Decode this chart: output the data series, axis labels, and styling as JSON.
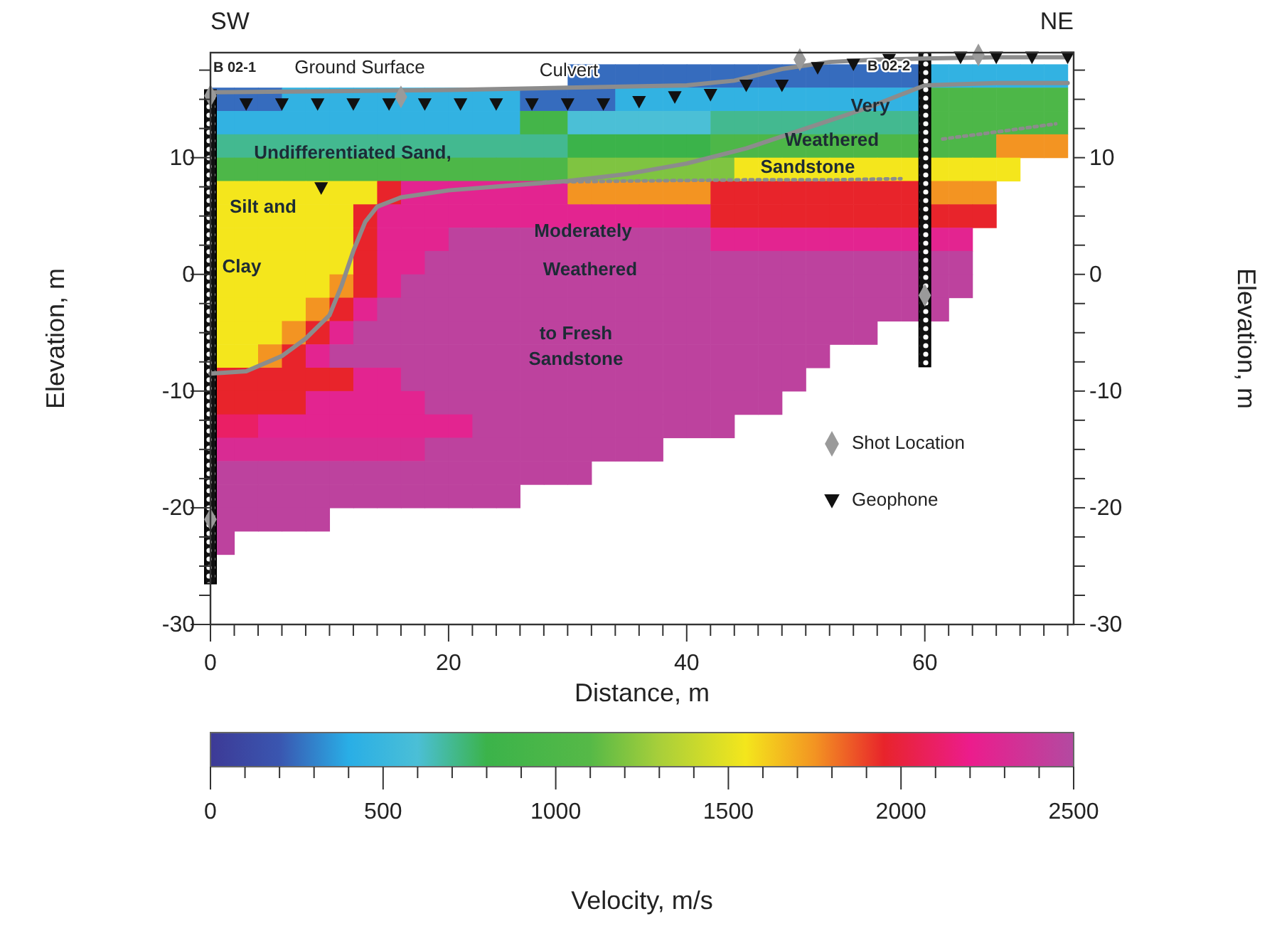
{
  "chart_data": {
    "type": "heatmap",
    "xlabel": "Distance, m",
    "ylabel": "Elevation, m",
    "y2label": "Elevation, m",
    "clabel": "Velocity, m/s",
    "x": [
      1,
      3,
      5,
      7,
      9,
      11,
      13,
      15,
      17,
      19,
      21,
      23,
      25,
      27,
      29,
      31,
      33,
      35,
      37,
      39,
      41,
      43,
      45,
      47,
      49,
      51,
      53,
      55,
      57,
      59,
      61,
      63,
      65,
      67,
      69,
      71
    ],
    "y": [
      17,
      15,
      13,
      11,
      9,
      7,
      5,
      3,
      1,
      -1,
      -3,
      -5,
      -7,
      -9,
      -11,
      -13,
      -15,
      -17,
      -19,
      -21,
      -23
    ],
    "cells": [
      [
        null,
        null,
        null,
        null,
        null,
        null,
        null,
        null,
        null,
        null,
        null,
        null,
        null,
        null,
        null,
        250,
        250,
        250,
        250,
        250,
        250,
        250,
        250,
        250,
        250,
        250,
        250,
        250,
        250,
        250,
        450,
        450,
        450,
        450,
        450,
        450
      ],
      [
        250,
        250,
        250,
        450,
        450,
        450,
        450,
        450,
        450,
        450,
        450,
        450,
        450,
        250,
        250,
        250,
        250,
        450,
        450,
        450,
        450,
        450,
        450,
        450,
        450,
        450,
        450,
        450,
        450,
        450,
        1000,
        1000,
        1000,
        1000,
        1000,
        1000
      ],
      [
        450,
        450,
        450,
        450,
        450,
        450,
        450,
        450,
        450,
        450,
        450,
        450,
        450,
        900,
        900,
        600,
        600,
        600,
        600,
        600,
        600,
        700,
        700,
        700,
        700,
        700,
        700,
        700,
        700,
        700,
        1000,
        1000,
        1000,
        1000,
        1000,
        1000
      ],
      [
        700,
        700,
        700,
        700,
        700,
        700,
        700,
        700,
        700,
        700,
        700,
        700,
        700,
        700,
        700,
        800,
        800,
        800,
        800,
        800,
        800,
        1000,
        1000,
        1000,
        1000,
        1000,
        1000,
        1000,
        1000,
        1000,
        1000,
        1000,
        1000,
        1750,
        1750,
        1750
      ],
      [
        1000,
        1000,
        1000,
        1000,
        1000,
        1000,
        1000,
        1000,
        1000,
        1000,
        1000,
        1000,
        1000,
        1000,
        1000,
        1200,
        1200,
        1200,
        1200,
        1200,
        1200,
        1200,
        1550,
        1550,
        1550,
        1550,
        1550,
        1550,
        1550,
        1550,
        1550,
        1550,
        1550,
        1550,
        null,
        null
      ],
      [
        1550,
        1550,
        1550,
        1550,
        1550,
        1550,
        1550,
        1950,
        2250,
        2250,
        2250,
        2250,
        2250,
        2250,
        2250,
        1750,
        1750,
        1750,
        1750,
        1750,
        1750,
        1950,
        1950,
        1950,
        1950,
        1950,
        1950,
        1950,
        1950,
        1950,
        1750,
        1750,
        1750,
        null,
        null,
        null
      ],
      [
        1550,
        1550,
        1550,
        1550,
        1550,
        1550,
        1950,
        2250,
        2250,
        2250,
        2250,
        2250,
        2250,
        2250,
        2250,
        2250,
        2250,
        2250,
        2250,
        2250,
        2250,
        1950,
        1950,
        1950,
        1950,
        1950,
        1950,
        1950,
        1950,
        1950,
        1950,
        1950,
        1950,
        null,
        null,
        null
      ],
      [
        1550,
        1550,
        1550,
        1550,
        1550,
        1550,
        1950,
        2250,
        2250,
        2250,
        2450,
        2450,
        2450,
        2450,
        2450,
        2450,
        2450,
        2450,
        2450,
        2450,
        2450,
        2250,
        2250,
        2250,
        2250,
        2250,
        2250,
        2250,
        2250,
        2250,
        2250,
        2250,
        null,
        null,
        null,
        null
      ],
      [
        1550,
        1550,
        1550,
        1550,
        1550,
        1550,
        1950,
        2250,
        2250,
        2450,
        2450,
        2450,
        2450,
        2450,
        2450,
        2450,
        2450,
        2450,
        2450,
        2450,
        2450,
        2450,
        2450,
        2450,
        2450,
        2450,
        2450,
        2450,
        2450,
        2450,
        2450,
        2450,
        null,
        null,
        null,
        null
      ],
      [
        1550,
        1550,
        1550,
        1550,
        1550,
        1750,
        1950,
        2250,
        2450,
        2450,
        2450,
        2450,
        2450,
        2450,
        2450,
        2450,
        2450,
        2450,
        2450,
        2450,
        2450,
        2450,
        2450,
        2450,
        2450,
        2450,
        2450,
        2450,
        2450,
        2450,
        2450,
        2450,
        null,
        null,
        null,
        null
      ],
      [
        1550,
        1550,
        1550,
        1550,
        1750,
        1950,
        2250,
        2450,
        2450,
        2450,
        2450,
        2450,
        2450,
        2450,
        2450,
        2450,
        2450,
        2450,
        2450,
        2450,
        2450,
        2450,
        2450,
        2450,
        2450,
        2450,
        2450,
        2450,
        2450,
        2450,
        2450,
        null,
        null,
        null,
        null,
        null
      ],
      [
        1550,
        1550,
        1550,
        1750,
        1950,
        2250,
        2450,
        2450,
        2450,
        2450,
        2450,
        2450,
        2450,
        2450,
        2450,
        2450,
        2450,
        2450,
        2450,
        2450,
        2450,
        2450,
        2450,
        2450,
        2450,
        2450,
        2450,
        2450,
        null,
        null,
        null,
        null,
        null,
        null,
        null,
        null
      ],
      [
        1550,
        1550,
        1750,
        1950,
        2250,
        2450,
        2450,
        2450,
        2450,
        2450,
        2450,
        2450,
        2450,
        2450,
        2450,
        2450,
        2450,
        2450,
        2450,
        2450,
        2450,
        2450,
        2450,
        2450,
        2450,
        2450,
        null,
        null,
        null,
        null,
        null,
        null,
        null,
        null,
        null,
        null
      ],
      [
        1950,
        1950,
        1950,
        1950,
        1950,
        1950,
        2250,
        2250,
        2450,
        2450,
        2450,
        2450,
        2450,
        2450,
        2450,
        2450,
        2450,
        2450,
        2450,
        2450,
        2450,
        2450,
        2450,
        2450,
        2450,
        null,
        null,
        null,
        null,
        null,
        null,
        null,
        null,
        null,
        null,
        null
      ],
      [
        1950,
        1950,
        1950,
        1950,
        2250,
        2250,
        2250,
        2250,
        2250,
        2450,
        2450,
        2450,
        2450,
        2450,
        2450,
        2450,
        2450,
        2450,
        2450,
        2450,
        2450,
        2450,
        2450,
        2450,
        null,
        null,
        null,
        null,
        null,
        null,
        null,
        null,
        null,
        null,
        null,
        null
      ],
      [
        2100,
        2100,
        2250,
        2250,
        2250,
        2250,
        2250,
        2250,
        2250,
        2250,
        2250,
        2450,
        2450,
        2450,
        2450,
        2450,
        2450,
        2450,
        2450,
        2450,
        2450,
        2450,
        null,
        null,
        null,
        null,
        null,
        null,
        null,
        null,
        null,
        null,
        null,
        null,
        null,
        null
      ],
      [
        2300,
        2300,
        2300,
        2300,
        2300,
        2300,
        2300,
        2300,
        2300,
        2450,
        2450,
        2450,
        2450,
        2450,
        2450,
        2450,
        2450,
        2450,
        2450,
        null,
        null,
        null,
        null,
        null,
        null,
        null,
        null,
        null,
        null,
        null,
        null,
        null,
        null,
        null,
        null,
        null
      ],
      [
        2450,
        2450,
        2450,
        2450,
        2450,
        2450,
        2450,
        2450,
        2450,
        2450,
        2450,
        2450,
        2450,
        2450,
        2450,
        2450,
        null,
        null,
        null,
        null,
        null,
        null,
        null,
        null,
        null,
        null,
        null,
        null,
        null,
        null,
        null,
        null,
        null,
        null,
        null,
        null
      ],
      [
        2450,
        2450,
        2450,
        2450,
        2450,
        2450,
        2450,
        2450,
        2450,
        2450,
        2450,
        2450,
        2450,
        null,
        null,
        null,
        null,
        null,
        null,
        null,
        null,
        null,
        null,
        null,
        null,
        null,
        null,
        null,
        null,
        null,
        null,
        null,
        null,
        null,
        null,
        null
      ],
      [
        2450,
        2450,
        2450,
        2450,
        2450,
        null,
        null,
        null,
        null,
        null,
        null,
        null,
        null,
        null,
        null,
        null,
        null,
        null,
        null,
        null,
        null,
        null,
        null,
        null,
        null,
        null,
        null,
        null,
        null,
        null,
        null,
        null,
        null,
        null,
        null,
        null
      ],
      [
        2450,
        null,
        null,
        null,
        null,
        null,
        null,
        null,
        null,
        null,
        null,
        null,
        null,
        null,
        null,
        null,
        null,
        null,
        null,
        null,
        null,
        null,
        null,
        null,
        null,
        null,
        null,
        null,
        null,
        null,
        null,
        null,
        null,
        null,
        null,
        null
      ]
    ],
    "clim": [
      0,
      2500
    ],
    "cticks": [
      0,
      {
        "value": 100,
        "label": null
      },
      {
        "value": 200,
        "label": null
      },
      {
        "value": 300,
        "label": null
      },
      {
        "value": 400,
        "label": null
      },
      500,
      {
        "value": 600,
        "label": null
      },
      {
        "value": 700,
        "label": null
      },
      {
        "value": 800,
        "label": null
      },
      {
        "value": 900,
        "label": null
      },
      1000,
      {
        "value": 1100,
        "label": null
      },
      {
        "value": 1200,
        "label": null
      },
      {
        "value": 1300,
        "label": null
      },
      {
        "value": 1400,
        "label": null
      },
      1500,
      {
        "value": 1600,
        "label": null
      },
      {
        "value": 1700,
        "label": null
      },
      {
        "value": 1800,
        "label": null
      },
      {
        "value": 1900,
        "label": null
      },
      2000,
      {
        "value": 2100,
        "label": null
      },
      {
        "value": 2200,
        "label": null
      },
      {
        "value": 2300,
        "label": null
      },
      {
        "value": 2400,
        "label": null
      },
      2500
    ],
    "xlim": [
      0,
      72.5
    ],
    "xticks": [
      0,
      {
        "value": 2,
        "label": null
      },
      {
        "value": 4,
        "label": null
      },
      {
        "value": 6,
        "label": null
      },
      {
        "value": 8,
        "label": null
      },
      {
        "value": 10,
        "label": null
      },
      {
        "value": 12,
        "label": null
      },
      {
        "value": 14,
        "label": null
      },
      {
        "value": 16,
        "label": null
      },
      {
        "value": 18,
        "label": null
      },
      20,
      {
        "value": 22,
        "label": null
      },
      {
        "value": 24,
        "label": null
      },
      {
        "value": 26,
        "label": null
      },
      {
        "value": 28,
        "label": null
      },
      {
        "value": 30,
        "label": null
      },
      {
        "value": 32,
        "label": null
      },
      {
        "value": 34,
        "label": null
      },
      {
        "value": 36,
        "label": null
      },
      {
        "value": 38,
        "label": null
      },
      40,
      {
        "value": 42,
        "label": null
      },
      {
        "value": 44,
        "label": null
      },
      {
        "value": 46,
        "label": null
      },
      {
        "value": 48,
        "label": null
      },
      {
        "value": 50,
        "label": null
      },
      {
        "value": 52,
        "label": null
      },
      {
        "value": 54,
        "label": null
      },
      {
        "value": 56,
        "label": null
      },
      {
        "value": 58,
        "label": null
      },
      60,
      {
        "value": 62,
        "label": null
      },
      {
        "value": 64,
        "label": null
      },
      {
        "value": 66,
        "label": null
      },
      {
        "value": 68,
        "label": null
      },
      {
        "value": 70,
        "label": null
      },
      {
        "value": 72,
        "label": null
      }
    ],
    "ylim": [
      -30,
      19
    ],
    "yticks": [
      -30,
      {
        "value": -27.5,
        "label": null
      },
      {
        "value": -25,
        "label": null
      },
      {
        "value": -22.5,
        "label": null
      },
      -20,
      {
        "value": -17.5,
        "label": null
      },
      {
        "value": -15,
        "label": null
      },
      {
        "value": -12.5,
        "label": null
      },
      -10,
      {
        "value": -7.5,
        "label": null
      },
      {
        "value": -5,
        "label": null
      },
      {
        "value": -2.5,
        "label": null
      },
      0,
      {
        "value": 2.5,
        "label": null
      },
      {
        "value": 5,
        "label": null
      },
      {
        "value": 7.5,
        "label": null
      },
      10,
      {
        "value": 12.5,
        "label": null
      },
      {
        "value": 15,
        "label": null
      },
      {
        "value": 17.5,
        "label": null
      }
    ],
    "y2lim": [
      -30,
      19
    ],
    "y2ticks": [
      -30,
      {
        "value": -27.5,
        "label": null
      },
      {
        "value": -25,
        "label": null
      },
      {
        "value": -22.5,
        "label": null
      },
      -20,
      {
        "value": -17.5,
        "label": null
      },
      {
        "value": -15,
        "label": null
      },
      {
        "value": -12.5,
        "label": null
      },
      -10,
      {
        "value": -7.5,
        "label": null
      },
      {
        "value": -5,
        "label": null
      },
      {
        "value": -2.5,
        "label": null
      },
      0,
      {
        "value": 2.5,
        "label": null
      },
      {
        "value": 5,
        "label": null
      },
      {
        "value": 7.5,
        "label": null
      },
      10,
      {
        "value": 12.5,
        "label": null
      },
      {
        "value": 15,
        "label": null
      },
      {
        "value": 17.5,
        "label": null
      }
    ],
    "series": [
      {
        "type": "line",
        "color": "#8c8c8c",
        "marker": "none",
        "line_style": "solid",
        "x": [
          0,
          10,
          20,
          30,
          40,
          44,
          48,
          52,
          56,
          60,
          66,
          72
        ],
        "values": [
          15.6,
          15.7,
          15.8,
          16,
          16.2,
          16.6,
          17.6,
          18.2,
          18.4,
          18.5,
          18.6,
          18.6
        ]
      },
      {
        "type": "line",
        "color": "#8c8c8c",
        "marker": "none",
        "line_style": "solid",
        "x": [
          0,
          3,
          6,
          8,
          10,
          11,
          12,
          13,
          14,
          16,
          20,
          25,
          30,
          35,
          40,
          45,
          50,
          55,
          58,
          60,
          66,
          72
        ],
        "values": [
          -8.5,
          -8.3,
          -7,
          -5.5,
          -3.5,
          -1,
          2,
          4.5,
          5.8,
          6.6,
          7.2,
          7.6,
          8,
          8.6,
          9.5,
          10.8,
          12.5,
          14.2,
          15.4,
          16.2,
          16.4,
          16.4
        ]
      },
      {
        "type": "line",
        "color": "#8c8c8c",
        "marker": "none",
        "line_style": "dotted",
        "x": [
          28,
          35,
          45,
          52,
          58
        ],
        "values": [
          7.9,
          8,
          8.1,
          8.1,
          8.2
        ]
      },
      {
        "type": "line",
        "color": "#8c8c8c",
        "marker": "none",
        "line_style": "dotted",
        "x": [
          61.5,
          66,
          71
        ],
        "values": [
          11.6,
          12.2,
          12.9
        ]
      },
      {
        "type": "scatter",
        "name": "Shot Location",
        "color": "#9a9a9a",
        "marker": "diamond",
        "x": [
          0,
          16,
          49.5,
          64.5,
          0,
          60
        ],
        "values": [
          15.3,
          15.2,
          18.4,
          18.8,
          -21,
          -1.8
        ]
      },
      {
        "type": "scatter",
        "name": "Geophone",
        "color": "#111111",
        "marker": "triangle",
        "x": [
          3,
          6,
          9,
          12,
          15,
          18,
          21,
          24,
          27,
          30,
          33,
          36,
          39,
          42,
          45,
          48,
          51,
          54,
          57,
          63,
          66,
          69,
          72,
          9.3
        ],
        "values": [
          14.6,
          14.6,
          14.6,
          14.6,
          14.6,
          14.6,
          14.6,
          14.6,
          14.6,
          14.6,
          14.6,
          14.8,
          15.2,
          15.4,
          16.2,
          16.2,
          17.7,
          18,
          18.4,
          18.6,
          18.6,
          18.6,
          18.6,
          7.4
        ]
      }
    ],
    "legend": "bottom right",
    "annotations": [
      "SW",
      "NE",
      "B 02-1",
      "B 02-2",
      "Ground Surface",
      "Culvert",
      "Undifferentiated Sand,",
      "Silt and",
      "Clay",
      "Very",
      "Weathered",
      "Sandstone",
      "Moderately",
      "Weathered",
      "to Fresh",
      "Sandstone"
    ]
  }
}
